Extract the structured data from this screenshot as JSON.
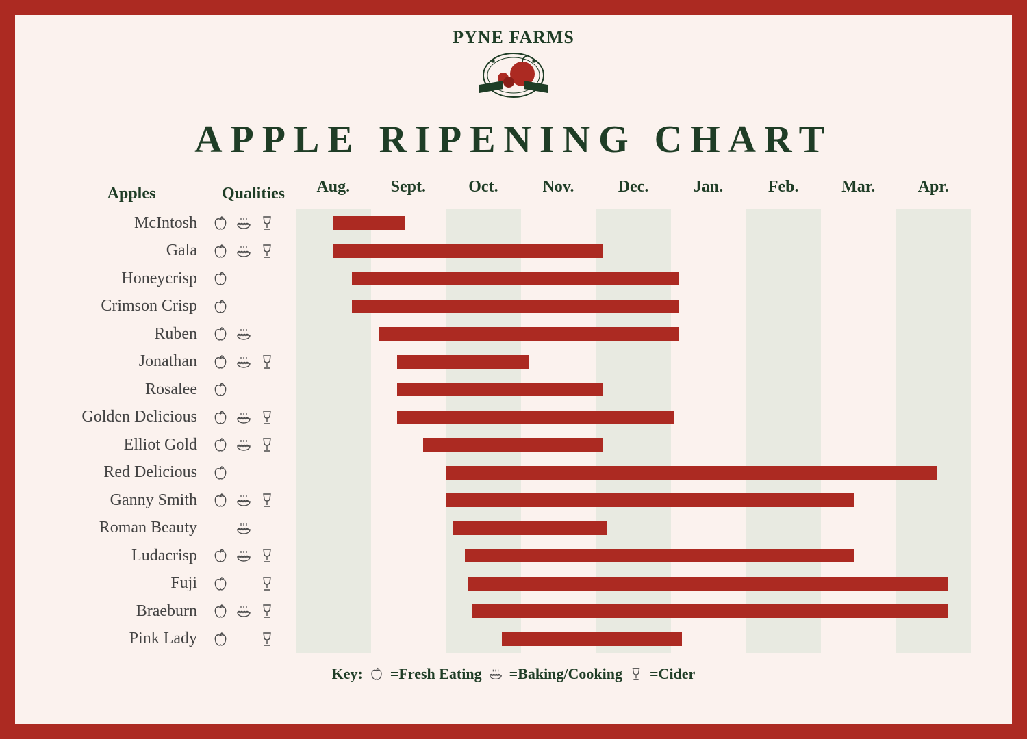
{
  "brand": "PYNE FARMS",
  "title": "APPLE RIPENING CHART",
  "headers": {
    "name": "Apples",
    "qualities": "Qualities"
  },
  "months": [
    "Aug.",
    "Sept.",
    "Oct.",
    "Nov.",
    "Dec.",
    "Jan.",
    "Feb.",
    "Mar.",
    "Apr."
  ],
  "icon_stroke": "#4a4a4a",
  "bar_color": "#ac2a22",
  "shade_color": "#e8eae1",
  "bg_color": "#fbf2ee",
  "border_color": "#ac2a22",
  "text_green": "#1f3d26",
  "apples": [
    {
      "name": "McIntosh",
      "q": {
        "fresh": true,
        "bake": true,
        "cider": true
      },
      "start": 0.5,
      "end": 1.45
    },
    {
      "name": "Gala",
      "q": {
        "fresh": true,
        "bake": true,
        "cider": true
      },
      "start": 0.5,
      "end": 4.1
    },
    {
      "name": "Honeycrisp",
      "q": {
        "fresh": true,
        "bake": false,
        "cider": false
      },
      "start": 0.75,
      "end": 5.1
    },
    {
      "name": "Crimson Crisp",
      "q": {
        "fresh": true,
        "bake": false,
        "cider": false
      },
      "start": 0.75,
      "end": 5.1
    },
    {
      "name": "Ruben",
      "q": {
        "fresh": true,
        "bake": true,
        "cider": false
      },
      "start": 1.1,
      "end": 5.1
    },
    {
      "name": "Jonathan",
      "q": {
        "fresh": true,
        "bake": true,
        "cider": true
      },
      "start": 1.35,
      "end": 3.1
    },
    {
      "name": "Rosalee",
      "q": {
        "fresh": true,
        "bake": false,
        "cider": false
      },
      "start": 1.35,
      "end": 4.1
    },
    {
      "name": "Golden Delicious",
      "q": {
        "fresh": true,
        "bake": true,
        "cider": true
      },
      "start": 1.35,
      "end": 5.05
    },
    {
      "name": "Elliot Gold",
      "q": {
        "fresh": true,
        "bake": true,
        "cider": true
      },
      "start": 1.7,
      "end": 4.1
    },
    {
      "name": "Red Delicious",
      "q": {
        "fresh": true,
        "bake": false,
        "cider": false
      },
      "start": 2.0,
      "end": 8.55
    },
    {
      "name": "Ganny Smith",
      "q": {
        "fresh": true,
        "bake": true,
        "cider": true
      },
      "start": 2.0,
      "end": 7.45
    },
    {
      "name": "Roman Beauty",
      "q": {
        "fresh": false,
        "bake": true,
        "cider": false
      },
      "start": 2.1,
      "end": 4.15
    },
    {
      "name": "Ludacrisp",
      "q": {
        "fresh": true,
        "bake": true,
        "cider": true
      },
      "start": 2.25,
      "end": 7.45
    },
    {
      "name": "Fuji",
      "q": {
        "fresh": true,
        "bake": false,
        "cider": true
      },
      "start": 2.3,
      "end": 8.7
    },
    {
      "name": "Braeburn",
      "q": {
        "fresh": true,
        "bake": true,
        "cider": true
      },
      "start": 2.35,
      "end": 8.7
    },
    {
      "name": "Pink Lady",
      "q": {
        "fresh": true,
        "bake": false,
        "cider": true
      },
      "start": 2.75,
      "end": 5.15
    }
  ],
  "key": {
    "label": "Key:",
    "fresh": "=Fresh Eating",
    "bake": "=Baking/Cooking",
    "cider": "=Cider"
  }
}
